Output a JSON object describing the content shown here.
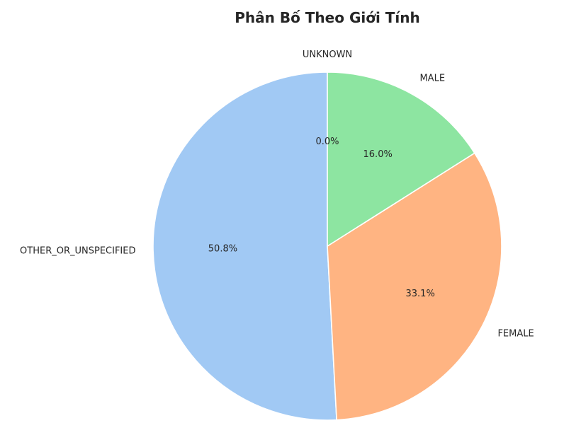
{
  "chart_data": {
    "type": "pie",
    "title": "Phân Bố Theo Giới Tính",
    "start_angle_deg": 90,
    "direction": "counterclockwise",
    "slices": [
      {
        "label": "UNKNOWN",
        "value": 0.0,
        "pct_label": "0.0%",
        "color": "#a1c9f4"
      },
      {
        "label": "OTHER_OR_UNSPECIFIED",
        "value": 50.8,
        "pct_label": "50.8%",
        "color": "#a1c9f4"
      },
      {
        "label": "FEMALE",
        "value": 33.1,
        "pct_label": "33.1%",
        "color": "#ffb482"
      },
      {
        "label": "MALE",
        "value": 16.0,
        "pct_label": "16.0%",
        "color": "#8de5a1"
      }
    ]
  }
}
